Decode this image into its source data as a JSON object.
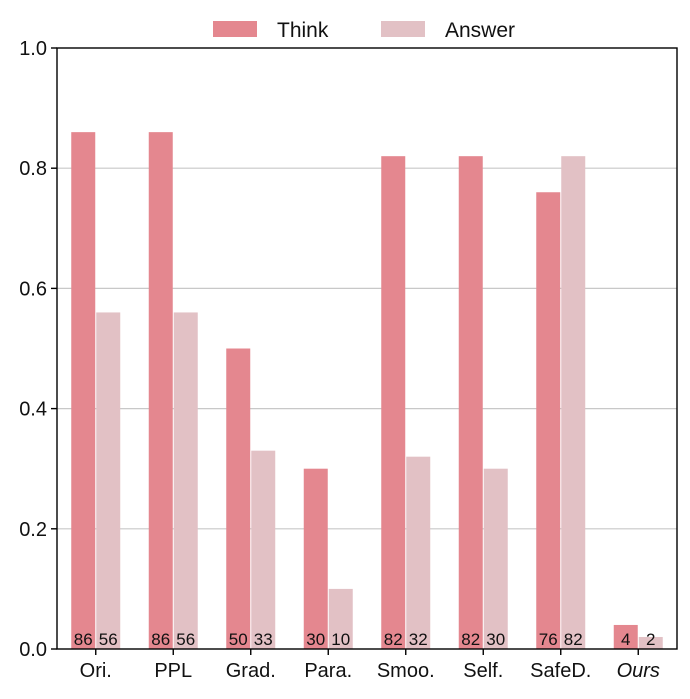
{
  "chart_data": {
    "type": "bar",
    "title": "",
    "xlabel": "",
    "ylabel": "",
    "categories": [
      "Ori.",
      "PPL",
      "Grad.",
      "Para.",
      "Smoo.",
      "Self.",
      "SafeD.",
      "Ours"
    ],
    "category_italic": [
      false,
      false,
      false,
      false,
      false,
      false,
      false,
      true
    ],
    "ylim": [
      0,
      1.0
    ],
    "yticks": [
      0.0,
      0.2,
      0.4,
      0.6,
      0.8,
      1.0
    ],
    "ytick_labels": [
      "0.0",
      "0.2",
      "0.4",
      "0.6",
      "0.8",
      "1.0"
    ],
    "grid": "horizontal",
    "legend": {
      "position": "top-center",
      "entries": [
        "Think",
        "Answer"
      ]
    },
    "series": [
      {
        "name": "Think",
        "color": "#e4878f",
        "values": [
          0.86,
          0.86,
          0.5,
          0.3,
          0.82,
          0.82,
          0.76,
          0.04
        ],
        "labels": [
          "86",
          "86",
          "50",
          "30",
          "82",
          "82",
          "76",
          "4"
        ]
      },
      {
        "name": "Answer",
        "color": "#e2c1c5",
        "values": [
          0.56,
          0.56,
          0.33,
          0.1,
          0.32,
          0.3,
          0.82,
          0.02
        ],
        "labels": [
          "56",
          "56",
          "33",
          "10",
          "32",
          "30",
          "82",
          "2"
        ]
      }
    ]
  }
}
